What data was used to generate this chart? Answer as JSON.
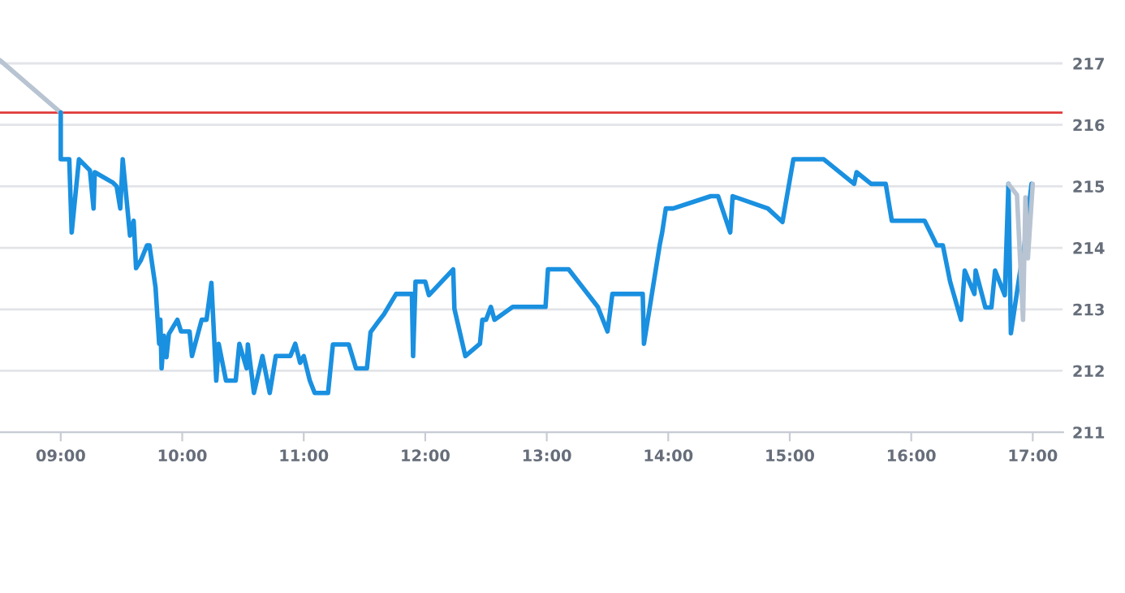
{
  "chart_data": {
    "type": "line",
    "xlim": [
      8.5,
      17.25
    ],
    "xticks": [
      {
        "value": 9,
        "label": "09:00"
      },
      {
        "value": 10,
        "label": "10:00"
      },
      {
        "value": 11,
        "label": "11:00"
      },
      {
        "value": 12,
        "label": "12:00"
      },
      {
        "value": 13,
        "label": "13:00"
      },
      {
        "value": 14,
        "label": "14:00"
      },
      {
        "value": 15,
        "label": "15:00"
      },
      {
        "value": 16,
        "label": "16:00"
      },
      {
        "value": 17,
        "label": "17:00"
      }
    ],
    "ylim": [
      211,
      217.5
    ],
    "yticks": [
      211,
      212,
      213,
      214,
      215,
      216,
      217
    ],
    "grid": "y",
    "legend": false,
    "marker": "none",
    "line_style": "solid",
    "ref_lines": [
      {
        "axis": "y",
        "value": 216.2,
        "label": null,
        "color": "#e03a3a",
        "line_style": "solid"
      }
    ],
    "series": [
      {
        "color": "#b8c4d2",
        "x": [
          8.5,
          9.0
        ],
        "values": [
          217.05,
          216.2
        ]
      },
      {
        "color": "#1a90e0",
        "x": [
          9.0,
          9.0,
          9.07,
          9.09,
          9.15,
          9.24,
          9.27,
          9.28,
          9.43,
          9.46,
          9.49,
          9.51,
          9.57,
          9.6,
          9.62,
          9.66,
          9.71,
          9.73,
          9.78,
          9.81,
          9.82,
          9.83,
          9.85,
          9.87,
          9.89,
          9.96,
          9.99,
          10.06,
          10.08,
          10.16,
          10.2,
          10.24,
          10.28,
          10.3,
          10.36,
          10.44,
          10.47,
          10.53,
          10.54,
          10.59,
          10.66,
          10.72,
          10.77,
          10.89,
          10.93,
          10.97,
          11.0,
          11.05,
          11.09,
          11.2,
          11.24,
          11.37,
          11.43,
          11.52,
          11.55,
          11.61,
          11.66,
          11.76,
          11.89,
          11.9,
          11.92,
          12.0,
          12.03,
          12.23,
          12.24,
          12.33,
          12.45,
          12.47,
          12.5,
          12.54,
          12.57,
          12.72,
          12.99,
          13.01,
          13.18,
          13.42,
          13.5,
          13.54,
          13.79,
          13.8,
          13.93,
          13.95,
          13.98,
          14.04,
          14.35,
          14.41,
          14.51,
          14.53,
          14.82,
          14.94,
          15.03,
          15.28,
          15.53,
          15.55,
          15.67,
          15.79,
          15.84,
          16.11,
          16.21,
          16.26,
          16.32,
          16.41,
          16.44,
          16.52,
          16.53,
          16.61,
          16.66,
          16.69,
          16.77,
          16.8,
          16.82,
          16.89,
          16.93,
          16.99
        ],
        "values": [
          216.2,
          215.44,
          215.44,
          214.25,
          215.44,
          215.26,
          214.64,
          215.23,
          215.06,
          215.0,
          214.64,
          215.44,
          214.2,
          214.44,
          213.67,
          213.8,
          214.04,
          214.04,
          213.36,
          212.44,
          212.83,
          212.04,
          212.57,
          212.22,
          212.6,
          212.83,
          212.64,
          212.64,
          212.24,
          212.83,
          212.83,
          213.43,
          211.84,
          212.44,
          211.84,
          211.84,
          212.44,
          212.04,
          212.43,
          211.64,
          212.24,
          211.64,
          212.24,
          212.24,
          212.44,
          212.13,
          212.24,
          211.84,
          211.64,
          211.64,
          212.43,
          212.43,
          212.04,
          212.04,
          212.63,
          212.79,
          212.92,
          213.25,
          213.25,
          212.24,
          213.45,
          213.45,
          213.23,
          213.65,
          213.01,
          212.24,
          212.44,
          212.83,
          212.83,
          213.04,
          212.83,
          213.04,
          213.04,
          213.65,
          213.65,
          213.04,
          212.64,
          213.25,
          213.25,
          212.44,
          214.05,
          214.25,
          214.64,
          214.64,
          214.84,
          214.84,
          214.25,
          214.84,
          214.64,
          214.42,
          215.44,
          215.44,
          215.04,
          215.23,
          215.04,
          215.04,
          214.44,
          214.44,
          214.04,
          214.04,
          213.45,
          212.83,
          213.63,
          213.25,
          213.63,
          213.03,
          213.03,
          213.63,
          213.23,
          215.04,
          212.61,
          213.54,
          214.02,
          215.04
        ]
      },
      {
        "color": "#b8c4d2",
        "x": [
          16.8,
          16.87,
          16.92,
          16.94,
          16.96,
          17.0
        ],
        "values": [
          215.04,
          214.86,
          212.83,
          214.82,
          213.83,
          215.04
        ]
      }
    ]
  }
}
